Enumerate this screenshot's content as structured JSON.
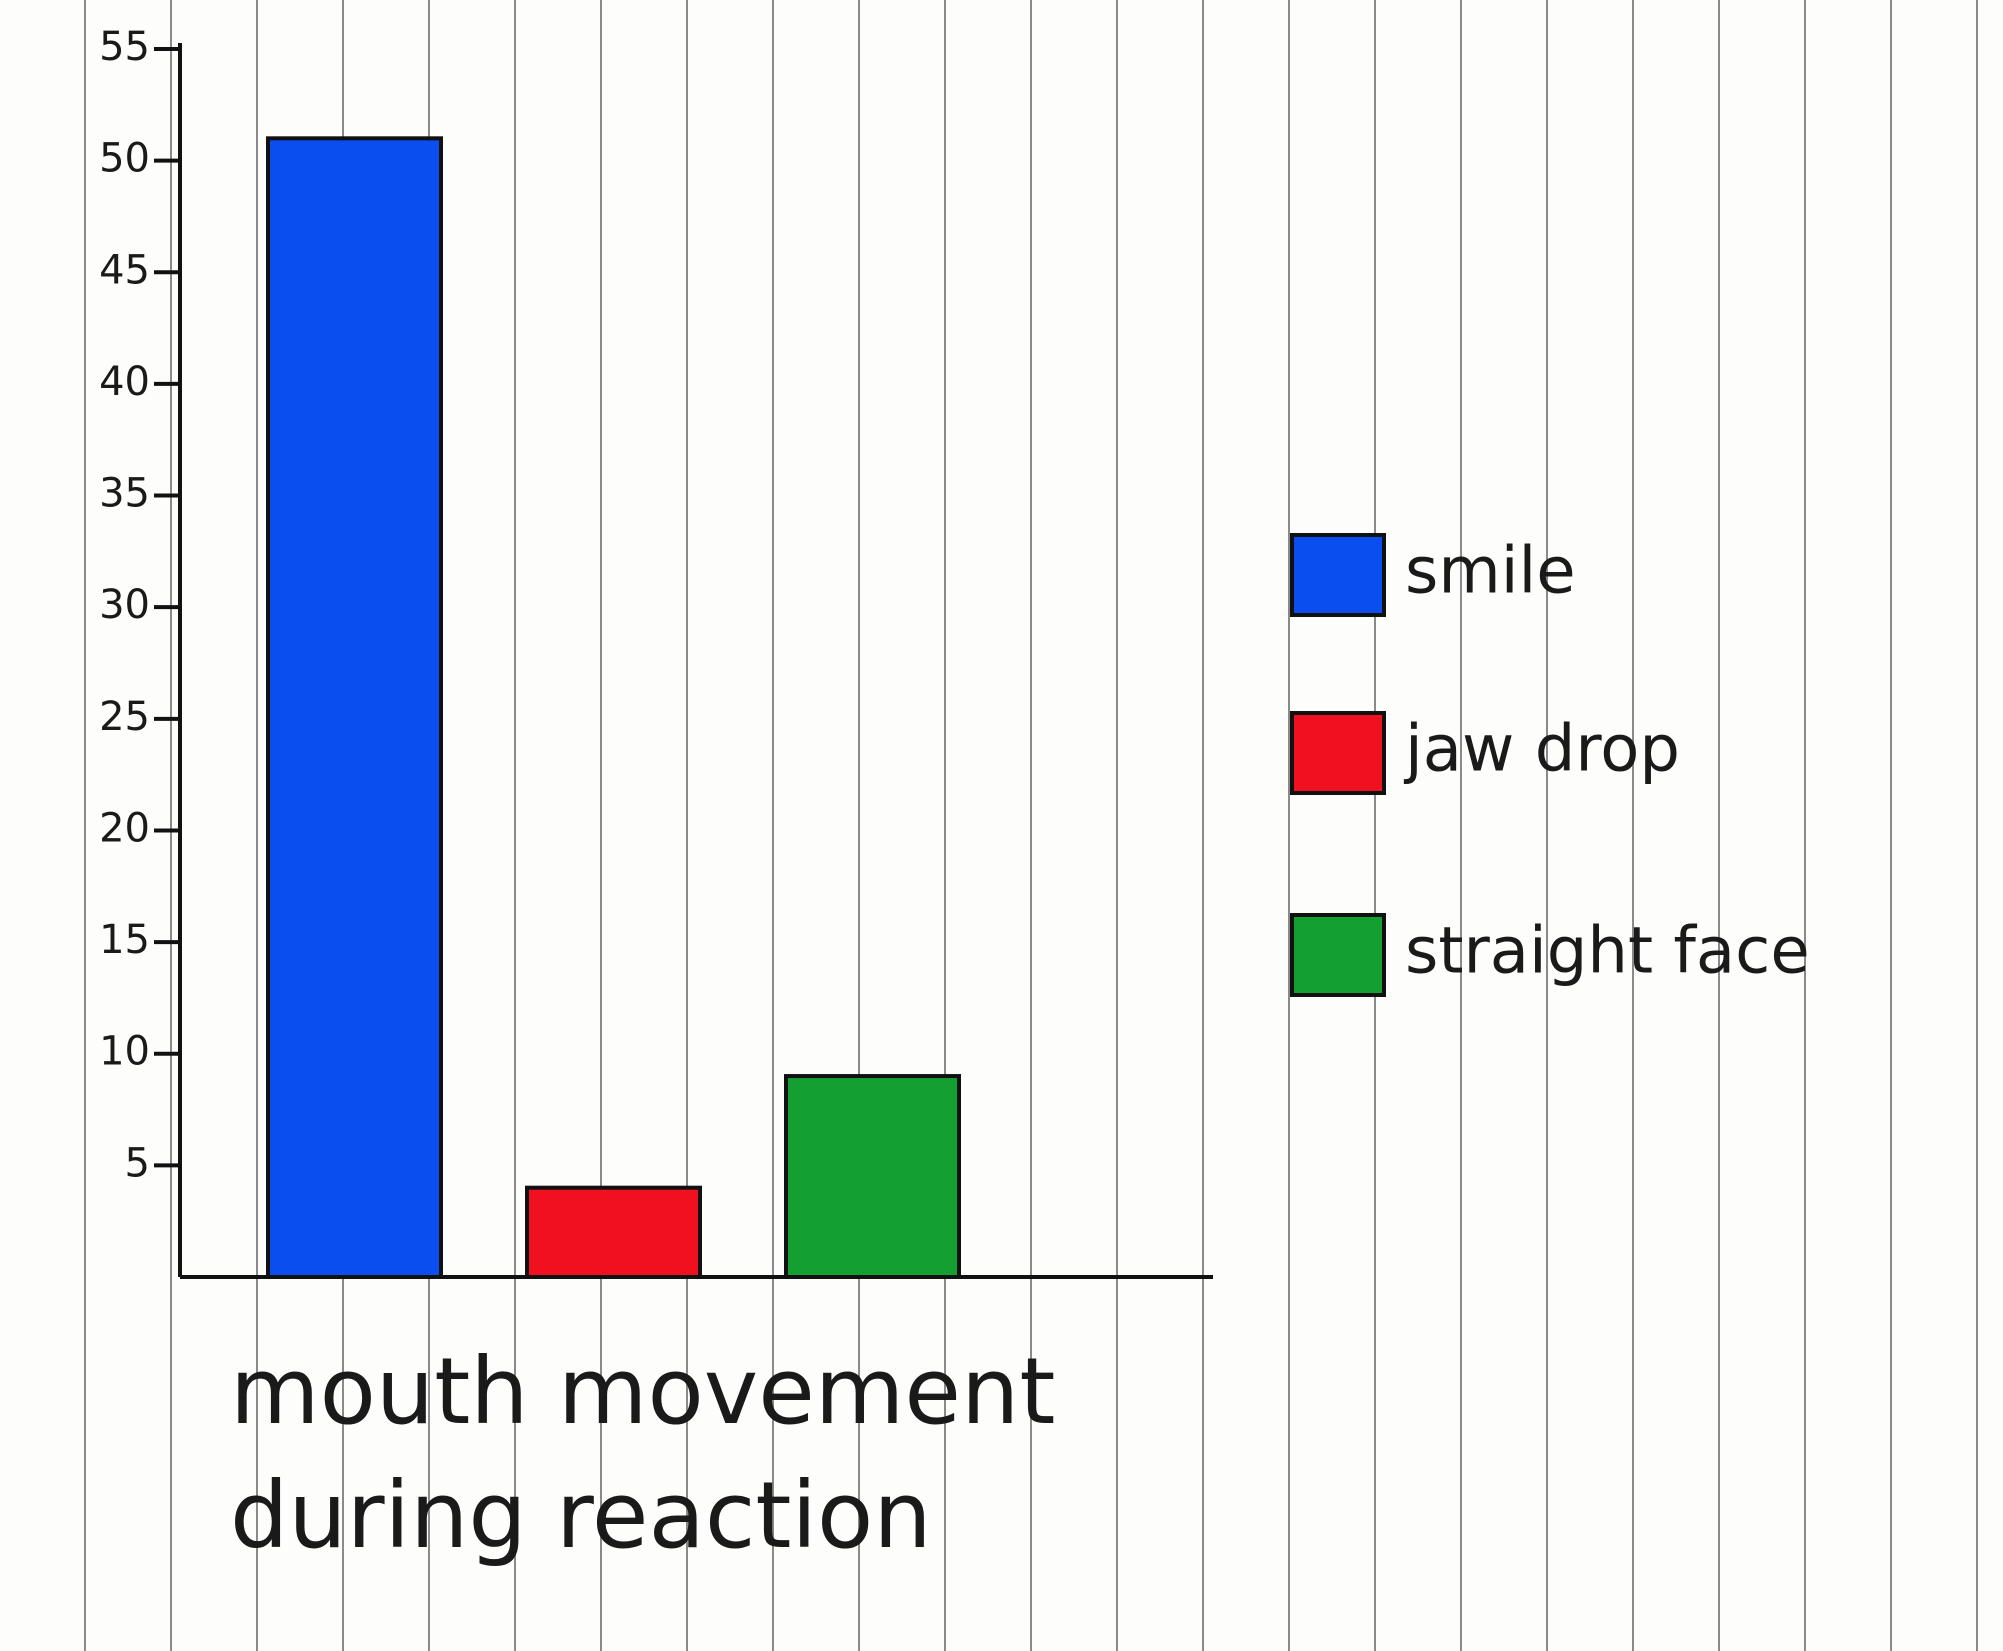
{
  "chart_data": {
    "type": "bar",
    "x_label": "mouth movement during reaction",
    "categories": [
      null
    ],
    "series": [
      {
        "name": "smile",
        "color": "#0a4ef0",
        "values": [
          51
        ]
      },
      {
        "name": "jaw drop",
        "color": "#f01020",
        "values": [
          4
        ]
      },
      {
        "name": "straight face",
        "color": "#14a030",
        "values": [
          9
        ]
      }
    ],
    "ylim": [
      0,
      55
    ],
    "yticks": [
      5,
      10,
      15,
      20,
      25,
      30,
      35,
      40,
      45,
      50,
      55
    ]
  }
}
